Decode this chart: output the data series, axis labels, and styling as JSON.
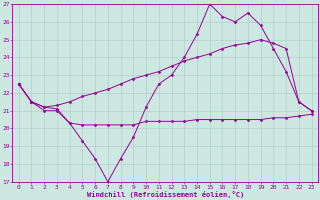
{
  "xlabel": "Windchill (Refroidissement éolien,°C)",
  "background_color": "#cce8e0",
  "grid_color": "#aacccc",
  "line_color": "#990099",
  "xlim": [
    -0.5,
    23.5
  ],
  "ylim": [
    17,
    27
  ],
  "yticks": [
    17,
    18,
    19,
    20,
    21,
    22,
    23,
    24,
    25,
    26,
    27
  ],
  "xticks": [
    0,
    1,
    2,
    3,
    4,
    5,
    6,
    7,
    8,
    9,
    10,
    11,
    12,
    13,
    14,
    15,
    16,
    17,
    18,
    19,
    20,
    21,
    22,
    23
  ],
  "line2_x": [
    0,
    1,
    2,
    3,
    4,
    5,
    6,
    7,
    8,
    9,
    10,
    11,
    12,
    13,
    14,
    15,
    16,
    17,
    18,
    19,
    20,
    21,
    22,
    23
  ],
  "line2_y": [
    22.5,
    21.5,
    21.0,
    21.0,
    20.3,
    19.3,
    18.3,
    17.0,
    18.3,
    19.5,
    21.2,
    22.5,
    23.0,
    24.0,
    25.3,
    27.0,
    26.3,
    26.0,
    26.5,
    25.8,
    24.5,
    23.2,
    21.5,
    21.0
  ],
  "line3_x": [
    0,
    1,
    2,
    3,
    4,
    5,
    6,
    7,
    8,
    9,
    10,
    11,
    12,
    13,
    14,
    15,
    16,
    17,
    18,
    19,
    20,
    21,
    22,
    23
  ],
  "line3_y": [
    22.5,
    21.5,
    21.2,
    21.1,
    20.3,
    20.2,
    20.2,
    20.2,
    20.2,
    20.2,
    20.4,
    20.4,
    20.4,
    20.4,
    20.5,
    20.5,
    20.5,
    20.5,
    20.5,
    20.5,
    20.6,
    20.6,
    20.7,
    20.8
  ],
  "line4_x": [
    0,
    1,
    2,
    3,
    4,
    5,
    6,
    7,
    8,
    9,
    10,
    11,
    12,
    13,
    14,
    15,
    16,
    17,
    18,
    19,
    20,
    21,
    22,
    23
  ],
  "line4_y": [
    22.5,
    21.5,
    21.2,
    21.3,
    21.5,
    21.8,
    22.0,
    22.2,
    22.5,
    22.8,
    23.0,
    23.2,
    23.5,
    23.8,
    24.0,
    24.2,
    24.5,
    24.7,
    24.8,
    25.0,
    24.8,
    24.5,
    21.5,
    21.0
  ],
  "marker_size": 1.5,
  "linewidth": 0.7,
  "tick_fontsize": 4.5,
  "xlabel_fontsize": 5.0
}
